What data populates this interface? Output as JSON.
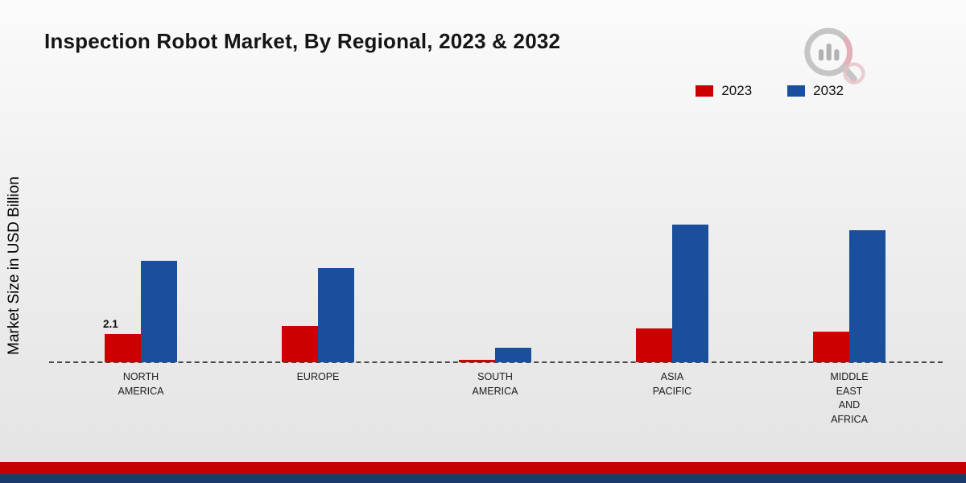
{
  "page": {
    "title": "Inspection Robot Market, By Regional, 2023 & 2032"
  },
  "y_axis_label": "Market Size in USD Billion",
  "colors": {
    "series_2023": "#cc0000",
    "series_2032": "#1a4f9c",
    "footer_red": "#c40000",
    "footer_navy": "#1b3a6b",
    "baseline": "#4a4a4a"
  },
  "chart_data": {
    "type": "bar",
    "title": "Inspection Robot Market, By Regional, 2023 & 2032",
    "ylabel": "Market Size in USD Billion",
    "xlabel": "",
    "categories": [
      "NORTH AMERICA",
      "EUROPE",
      "SOUTH AMERICA",
      "ASIA PACIFIC",
      "MIDDLE EAST AND AFRICA"
    ],
    "series": [
      {
        "name": "2023",
        "color": "#cc0000",
        "values": [
          2.1,
          2.7,
          0.2,
          2.5,
          2.3
        ]
      },
      {
        "name": "2032",
        "color": "#1a4f9c",
        "values": [
          7.5,
          7.0,
          1.1,
          10.2,
          9.8
        ]
      }
    ],
    "bar_labels": [
      {
        "series": "2023",
        "category": "NORTH AMERICA",
        "text": "2.1"
      }
    ],
    "ylim": [
      0,
      12
    ],
    "grid": false,
    "baseline_style": "dashed",
    "legend_position": "top-right"
  }
}
